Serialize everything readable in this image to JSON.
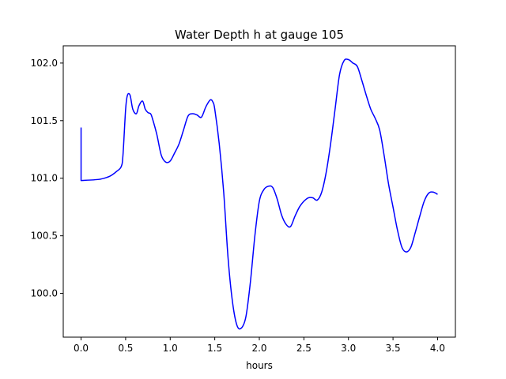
{
  "chart_data": {
    "type": "line",
    "title": "Water Depth h at gauge 105",
    "xlabel": "hours",
    "ylabel": "",
    "xlim": [
      -0.2,
      4.2
    ],
    "ylim": [
      99.62,
      102.15
    ],
    "xticks": [
      0.0,
      0.5,
      1.0,
      1.5,
      2.0,
      2.5,
      3.0,
      3.5,
      4.0
    ],
    "xtick_labels": [
      "0.0",
      "0.5",
      "1.0",
      "1.5",
      "2.0",
      "2.5",
      "3.0",
      "3.5",
      "4.0"
    ],
    "yticks": [
      100.0,
      100.5,
      101.0,
      101.5,
      102.0
    ],
    "ytick_labels": [
      "100.0",
      "100.5",
      "101.0",
      "101.5",
      "102.0"
    ],
    "grid": false,
    "series": [
      {
        "color": "#0000ff",
        "x": [
          0.0,
          0.0,
          0.2,
          0.3,
          0.35,
          0.4,
          0.45,
          0.47,
          0.5,
          0.52,
          0.55,
          0.58,
          0.62,
          0.65,
          0.69,
          0.72,
          0.75,
          0.78,
          0.8,
          0.85,
          0.9,
          0.95,
          1.0,
          1.05,
          1.1,
          1.15,
          1.2,
          1.25,
          1.3,
          1.35,
          1.4,
          1.45,
          1.48,
          1.5,
          1.55,
          1.6,
          1.65,
          1.7,
          1.75,
          1.8,
          1.85,
          1.9,
          1.95,
          2.0,
          2.05,
          2.1,
          2.15,
          2.2,
          2.25,
          2.3,
          2.35,
          2.4,
          2.45,
          2.5,
          2.55,
          2.6,
          2.65,
          2.7,
          2.75,
          2.8,
          2.85,
          2.9,
          2.95,
          3.0,
          3.05,
          3.1,
          3.15,
          3.2,
          3.25,
          3.3,
          3.35,
          3.4,
          3.45,
          3.5,
          3.55,
          3.6,
          3.65,
          3.7,
          3.75,
          3.8,
          3.85,
          3.9,
          3.95,
          4.0
        ],
        "y": [
          101.44,
          100.98,
          100.99,
          101.01,
          101.03,
          101.06,
          101.1,
          101.2,
          101.6,
          101.72,
          101.72,
          101.6,
          101.56,
          101.63,
          101.67,
          101.6,
          101.57,
          101.56,
          101.52,
          101.38,
          101.2,
          101.14,
          101.15,
          101.22,
          101.3,
          101.42,
          101.54,
          101.56,
          101.55,
          101.53,
          101.62,
          101.68,
          101.66,
          101.6,
          101.3,
          100.88,
          100.3,
          99.92,
          99.72,
          99.7,
          99.8,
          100.1,
          100.5,
          100.8,
          100.9,
          100.93,
          100.92,
          100.82,
          100.68,
          100.6,
          100.58,
          100.67,
          100.75,
          100.8,
          100.83,
          100.83,
          100.81,
          100.88,
          101.05,
          101.3,
          101.6,
          101.9,
          102.02,
          102.03,
          102.0,
          101.97,
          101.85,
          101.72,
          101.6,
          101.52,
          101.42,
          101.2,
          100.95,
          100.75,
          100.55,
          100.4,
          100.36,
          100.4,
          100.53,
          100.67,
          100.8,
          100.87,
          100.88,
          100.86
        ]
      }
    ]
  }
}
